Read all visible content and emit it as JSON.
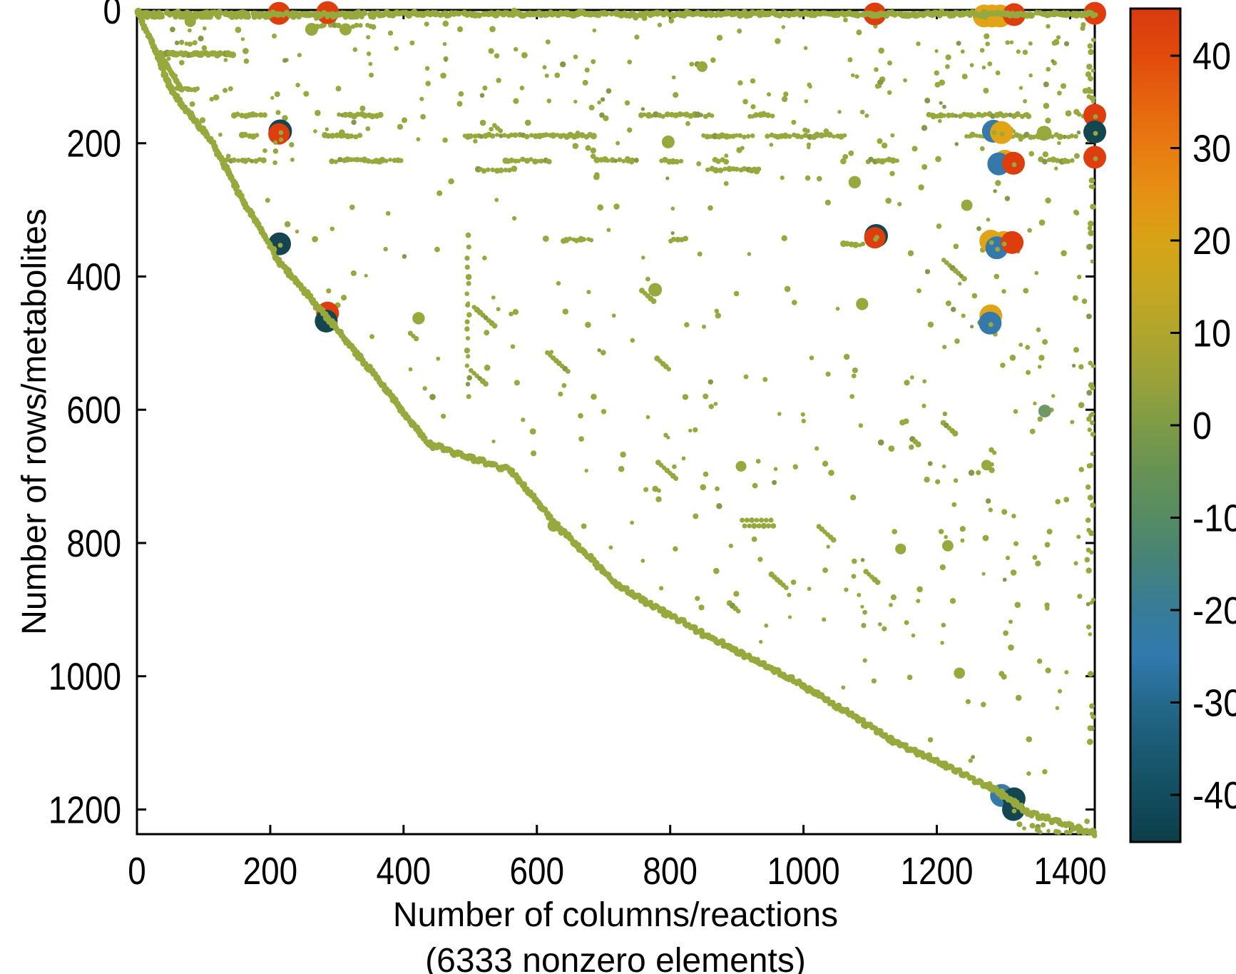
{
  "figure": {
    "xlabel_line1": "Number of columns/reactions",
    "xlabel_line2": "(6333 nonzero elements)",
    "ylabel": "Number of rows/metabolites"
  },
  "chart_data": {
    "type": "scatter",
    "subtype": "matrix-sparsity-spy-plot",
    "title": "",
    "xlabel": "Number of columns/reactions (6333 nonzero elements)",
    "ylabel": "Number of rows/metabolites",
    "nonzero_elements": 6333,
    "x_range": [
      0,
      1437
    ],
    "y_range": [
      0,
      1237
    ],
    "y_axis_reversed": true,
    "grid": false,
    "x_ticks": [
      0,
      200,
      400,
      600,
      800,
      1000,
      1200,
      1400
    ],
    "y_ticks": [
      0,
      200,
      400,
      600,
      800,
      1000,
      1200
    ],
    "palette": {
      "dot": "#97a83d",
      "dot_dark": "#7f9b45",
      "red": "#de3d0d",
      "orange": "#e0a416",
      "blue": "#3579ab",
      "teal": "#14464f",
      "mgreen": "#6f9767"
    },
    "colorbar": {
      "vmin": -45.1,
      "vmax": 45.1,
      "ticks": [
        40,
        30,
        20,
        10,
        0,
        -10,
        -20,
        -30,
        -40
      ],
      "tick_labels": [
        "40",
        "30",
        "20",
        "10",
        "0",
        "-10",
        "-20",
        "-30",
        "-40"
      ],
      "stops": [
        [
          45,
          "#d83a0f"
        ],
        [
          40,
          "#e14a0c"
        ],
        [
          35,
          "#e5640f"
        ],
        [
          30,
          "#e87b12"
        ],
        [
          25,
          "#e59114"
        ],
        [
          20,
          "#d8a315"
        ],
        [
          15,
          "#c6a722"
        ],
        [
          10,
          "#b0a52d"
        ],
        [
          5,
          "#9aa23a"
        ],
        [
          0,
          "#7e9b47"
        ],
        [
          -5,
          "#679254"
        ],
        [
          -10,
          "#568b63"
        ],
        [
          -15,
          "#46827a"
        ],
        [
          -20,
          "#377c98"
        ],
        [
          -25,
          "#3179ae"
        ],
        [
          -30,
          "#24698b"
        ],
        [
          -35,
          "#1a5a72"
        ],
        [
          -40,
          "#124d5e"
        ],
        [
          -45,
          "#0d3e49"
        ]
      ]
    },
    "bubbles": [
      {
        "x": 213,
        "y": 5,
        "c": "red",
        "r": 16,
        "approx_value": 44
      },
      {
        "x": 286,
        "y": 4,
        "c": "red",
        "r": 16,
        "approx_value": 44
      },
      {
        "x": 1107,
        "y": 6,
        "c": "red",
        "r": 16,
        "approx_value": 44
      },
      {
        "x": 1271,
        "y": 9,
        "c": "orange",
        "r": 16,
        "approx_value": 20
      },
      {
        "x": 1283,
        "y": 9,
        "c": "orange",
        "r": 16,
        "approx_value": 20
      },
      {
        "x": 1295,
        "y": 9,
        "c": "orange",
        "r": 16,
        "approx_value": 20
      },
      {
        "x": 1316,
        "y": 7,
        "c": "red",
        "r": 16,
        "approx_value": 44
      },
      {
        "x": 1437,
        "y": 5,
        "c": "red",
        "r": 16,
        "approx_value": 44
      },
      {
        "x": 1285,
        "y": 182,
        "c": "blue",
        "r": 16,
        "approx_value": -25
      },
      {
        "x": 1297,
        "y": 184,
        "c": "orange",
        "r": 16,
        "approx_value": 20
      },
      {
        "x": 1437,
        "y": 158,
        "c": "red",
        "r": 16,
        "approx_value": 44
      },
      {
        "x": 1437,
        "y": 183,
        "c": "teal",
        "r": 16,
        "approx_value": -42
      },
      {
        "x": 1437,
        "y": 221,
        "c": "red",
        "r": 16,
        "approx_value": 44
      },
      {
        "x": 215,
        "y": 182,
        "c": "teal",
        "r": 16.5,
        "approx_value": -42
      },
      {
        "x": 213,
        "y": 186,
        "c": "red",
        "r": 15,
        "approx_value": 44
      },
      {
        "x": 1302,
        "y": 227,
        "c": "orange",
        "r": 16,
        "approx_value": 20
      },
      {
        "x": 1293,
        "y": 231,
        "c": "blue",
        "r": 16,
        "approx_value": -25
      },
      {
        "x": 1315,
        "y": 230,
        "c": "red",
        "r": 16,
        "approx_value": 44
      },
      {
        "x": 214,
        "y": 351,
        "c": "teal",
        "r": 16,
        "approx_value": -42
      },
      {
        "x": 1109,
        "y": 339,
        "c": "teal",
        "r": 16.5,
        "approx_value": -42
      },
      {
        "x": 1107,
        "y": 342,
        "c": "red",
        "r": 15,
        "approx_value": 44
      },
      {
        "x": 1281,
        "y": 347,
        "c": "orange",
        "r": 16,
        "approx_value": 20
      },
      {
        "x": 1300,
        "y": 349,
        "c": "orange",
        "r": 16,
        "approx_value": 20
      },
      {
        "x": 1290,
        "y": 357,
        "c": "blue",
        "r": 16,
        "approx_value": -25
      },
      {
        "x": 1313,
        "y": 349,
        "c": "red",
        "r": 16,
        "approx_value": 44
      },
      {
        "x": 1281,
        "y": 459,
        "c": "orange",
        "r": 16,
        "approx_value": 20
      },
      {
        "x": 1280,
        "y": 470,
        "c": "blue",
        "r": 16,
        "approx_value": -25
      },
      {
        "x": 286,
        "y": 455,
        "c": "red",
        "r": 16,
        "approx_value": 44
      },
      {
        "x": 284,
        "y": 467,
        "c": "teal",
        "r": 16,
        "approx_value": -42
      },
      {
        "x": 1362,
        "y": 602,
        "c": "mgreen",
        "r": 9,
        "approx_value": -8
      },
      {
        "x": 1297,
        "y": 1179,
        "c": "blue",
        "r": 16,
        "approx_value": -25
      },
      {
        "x": 1316,
        "y": 1184,
        "c": "teal",
        "r": 16,
        "approx_value": -42
      },
      {
        "x": 1315,
        "y": 1200,
        "c": "teal",
        "r": 16,
        "approx_value": -42
      }
    ],
    "texture": {
      "seed": 42,
      "staircase": [
        [
          0,
          0
        ],
        [
          27,
          60
        ],
        [
          53,
          124
        ],
        [
          114,
          200
        ],
        [
          148,
          266
        ],
        [
          214,
          379
        ],
        [
          286,
          462
        ],
        [
          369,
          564
        ],
        [
          436,
          650
        ],
        [
          500,
          672
        ],
        [
          560,
          690
        ],
        [
          629,
          772
        ],
        [
          720,
          863
        ],
        [
          847,
          935
        ],
        [
          999,
          1013
        ],
        [
          1137,
          1098
        ],
        [
          1281,
          1166
        ],
        [
          1340,
          1205
        ],
        [
          1437,
          1236
        ]
      ],
      "top_row_y": 6,
      "segments": [
        {
          "y": 66,
          "x0": 35,
          "x1": 148,
          "step": 3.2,
          "r": 4.4,
          "density": 0.95
        },
        {
          "y": 119,
          "x0": 60,
          "x1": 92,
          "step": 4.5,
          "r": 3.6,
          "density": 0.8
        },
        {
          "y": 24,
          "x0": 250,
          "x1": 356,
          "step": 5,
          "r": 3.6,
          "density": 0.7
        },
        {
          "y": 50,
          "x0": 60,
          "x1": 96,
          "step": 6,
          "r": 3.4,
          "density": 0.6
        },
        {
          "y": 50,
          "x0": 1220,
          "x1": 1420,
          "step": 7,
          "r": 3.3,
          "density": 0.35
        },
        {
          "y": 62,
          "x0": 1230,
          "x1": 1330,
          "step": 8,
          "r": 3.2,
          "density": 0.3
        }
      ],
      "diagonals": [
        {
          "x0": 35,
          "y0": 67,
          "x1": 67,
          "y1": 119,
          "step": 4
        }
      ],
      "bands": [
        {
          "y": 158,
          "x0": 95,
          "x1": 1428,
          "on": 0.5
        },
        {
          "y": 189,
          "x0": 58,
          "x1": 1430,
          "on": 0.65
        },
        {
          "y": 226,
          "x0": 95,
          "x1": 1430,
          "on": 0.5
        },
        {
          "y": 240,
          "x0": 430,
          "x1": 1130,
          "on": 0.25
        },
        {
          "y": 352,
          "x0": 1060,
          "x1": 1428,
          "on": 0.3
        },
        {
          "y": 345,
          "x0": 640,
          "x1": 980,
          "on": 0.2
        }
      ],
      "vertical_runs": [
        {
          "x": 497,
          "y0": 338,
          "y1": 590,
          "step": 14
        }
      ],
      "right_column_x": 1431,
      "right_column_n": 85,
      "scatter_attempts": 1500,
      "streak_count": 15,
      "wave": {
        "x": 908,
        "y": 770,
        "n": 14
      },
      "tail_below_n": 14,
      "medium_dots": [
        {
          "x": 262,
          "y": 29,
          "r": 9
        },
        {
          "x": 313,
          "y": 29,
          "r": 8.5
        },
        {
          "x": 80,
          "y": 17,
          "r": 8
        },
        {
          "x": 1361,
          "y": 185,
          "r": 10.5
        },
        {
          "x": 797,
          "y": 198,
          "r": 9
        },
        {
          "x": 625,
          "y": 774,
          "r": 8.5
        },
        {
          "x": 1245,
          "y": 293,
          "r": 8
        },
        {
          "x": 1274,
          "y": 344,
          "r": 9
        }
      ]
    }
  }
}
